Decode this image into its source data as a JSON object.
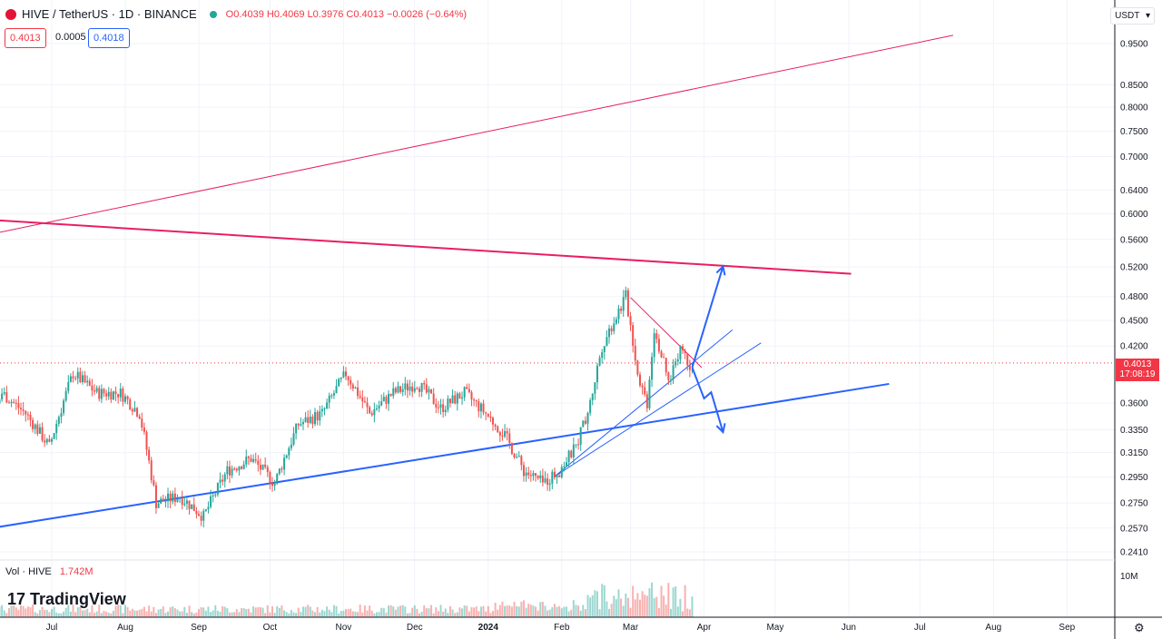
{
  "header": {
    "symbol": "HIVE / TetherUS · 1D · BINANCE",
    "ohlc": "O0.4039  H0.4069  L0.3976  C0.4013  −0.0026 (−0.64%)",
    "bid": "0.4013",
    "spread": "0.0005",
    "ask": "0.4018"
  },
  "price_axis": {
    "unit": "USDT",
    "current_price": "0.4013",
    "countdown": "17:08:19"
  },
  "volume": {
    "label": "Vol · HIVE",
    "value": "1.742M",
    "axis_tick": "10M"
  },
  "branding": {
    "logo_text": "TradingView"
  },
  "colors": {
    "up": "#26a69a",
    "down": "#ef5350",
    "blue_line": "#2962ff",
    "red_line": "#e91e63"
  },
  "chart_data": {
    "type": "candlestick",
    "scale": "log",
    "ylim": [
      0.235,
      0.99
    ],
    "yticks": [
      0.241,
      0.257,
      0.275,
      0.295,
      0.315,
      0.335,
      0.36,
      0.42,
      0.45,
      0.48,
      0.52,
      0.56,
      0.6,
      0.64,
      0.7,
      0.75,
      0.8,
      0.85,
      0.95
    ],
    "xticks": [
      "Jul",
      "Aug",
      "Sep",
      "Oct",
      "Nov",
      "Dec",
      "2024",
      "Feb",
      "Mar",
      "Apr",
      "May",
      "Jun",
      "Jul",
      "Aug",
      "Sep"
    ],
    "xlim_days": [
      -56,
      385
    ],
    "grid": true,
    "series": [
      {
        "kind": "anchors",
        "note_points": [
          [
            -56,
            0.31
          ],
          [
            -40,
            0.31
          ],
          [
            -25,
            0.34
          ],
          [
            -20,
            0.37
          ],
          [
            -10,
            0.35
          ],
          [
            0,
            0.32
          ],
          [
            10,
            0.39
          ],
          [
            20,
            0.37
          ],
          [
            30,
            0.37
          ],
          [
            38,
            0.35
          ],
          [
            45,
            0.275
          ],
          [
            55,
            0.28
          ],
          [
            65,
            0.265
          ],
          [
            75,
            0.3
          ],
          [
            85,
            0.31
          ],
          [
            95,
            0.29
          ],
          [
            105,
            0.34
          ],
          [
            115,
            0.35
          ],
          [
            125,
            0.39
          ],
          [
            135,
            0.35
          ],
          [
            145,
            0.37
          ],
          [
            155,
            0.38
          ],
          [
            165,
            0.355
          ],
          [
            175,
            0.37
          ],
          [
            184,
            0.35
          ],
          [
            192,
            0.33
          ],
          [
            200,
            0.3
          ],
          [
            208,
            0.29
          ],
          [
            215,
            0.3
          ],
          [
            222,
            0.32
          ],
          [
            228,
            0.36
          ],
          [
            233,
            0.42
          ],
          [
            238,
            0.45
          ],
          [
            243,
            0.48
          ],
          [
            248,
            0.39
          ],
          [
            252,
            0.36
          ],
          [
            255,
            0.44
          ],
          [
            261,
            0.38
          ],
          [
            266,
            0.42
          ],
          [
            270,
            0.4
          ]
        ]
      }
    ],
    "trendlines": [
      {
        "color": "blue",
        "width": 2,
        "from": [
          -56,
          0.249
        ],
        "to": [
          353,
          0.3792
        ]
      },
      {
        "color": "blue",
        "width": 1,
        "from": [
          212,
          0.2954
        ],
        "to": [
          287,
          0.4388
        ]
      },
      {
        "color": "blue",
        "width": 1,
        "from": [
          212,
          0.2954
        ],
        "to": [
          299,
          0.4235
        ]
      },
      {
        "color": "red",
        "width": 2,
        "from": [
          -56,
          0.5975
        ],
        "to": [
          337,
          0.5104
        ]
      },
      {
        "color": "red",
        "width": 1,
        "from": [
          -56,
          0.5457
        ],
        "to": [
          380,
          0.9714
        ]
      },
      {
        "color": "red",
        "width": 1,
        "from": [
          244,
          0.4787
        ],
        "to": [
          274,
          0.3964
        ]
      }
    ],
    "arrows": [
      {
        "color": "blue",
        "points": [
          [
            270,
            0.3964
          ],
          [
            283,
            0.5206
          ]
        ]
      },
      {
        "color": "blue",
        "points": [
          [
            270,
            0.3964
          ],
          [
            275,
            0.3646
          ],
          [
            278,
            0.3707
          ],
          [
            283,
            0.3329
          ]
        ]
      }
    ]
  }
}
